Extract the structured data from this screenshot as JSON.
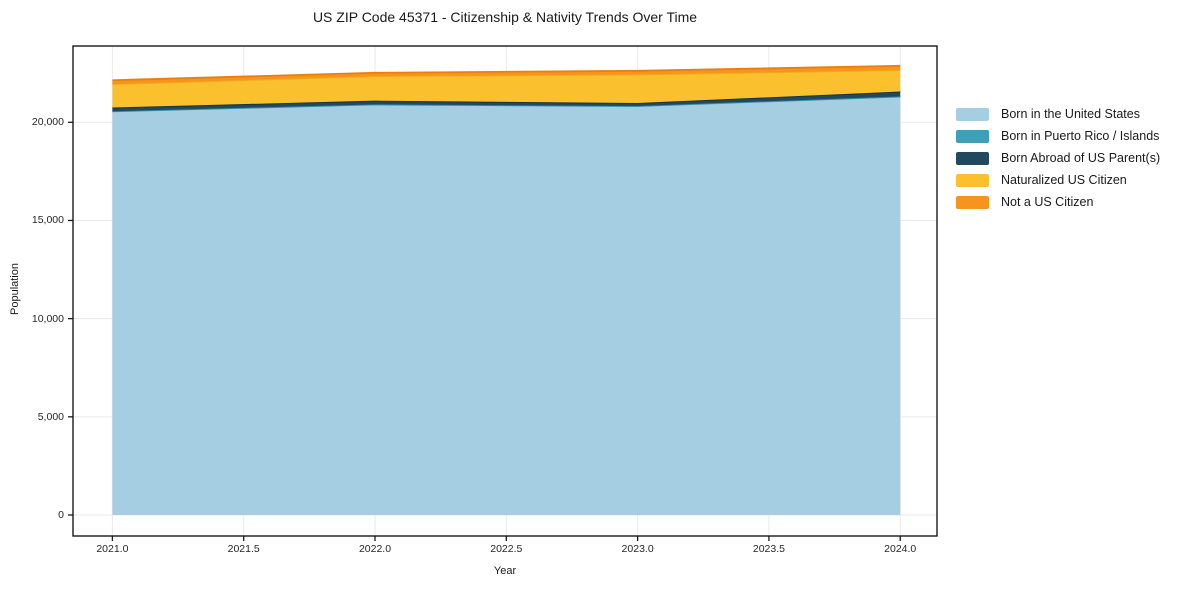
{
  "page": {
    "background": "#ffffff"
  },
  "chart_data": {
    "type": "area",
    "stacked": true,
    "title": "US ZIP Code 45371 - Citizenship & Nativity Trends Over Time",
    "xlabel": "Year",
    "ylabel": "Population",
    "x": [
      2021,
      2022,
      2023,
      2024
    ],
    "series": [
      {
        "name": "Born in the United States",
        "color": "#A6CEE3",
        "edge_color": "#8FC0DA",
        "values": [
          20550,
          20900,
          20820,
          21300
        ]
      },
      {
        "name": "Born in Puerto Rico / Islands",
        "color": "#3D9FB8",
        "edge_color": "#2E8CA6",
        "values": [
          12,
          12,
          12,
          18
        ]
      },
      {
        "name": "Born Abroad of US Parent(s)",
        "color": "#21485C",
        "edge_color": "#16323F",
        "values": [
          190,
          190,
          150,
          250
        ]
      },
      {
        "name": "Naturalized US Citizen",
        "color": "#FBC02D",
        "edge_color": "#F0AD1E",
        "values": [
          1190,
          1250,
          1450,
          1090
        ]
      },
      {
        "name": "Not a US Citizen",
        "color": "#F7941E",
        "edge_color": "#EC7F0C",
        "values": [
          200,
          170,
          190,
          220
        ]
      }
    ],
    "xticks": {
      "values": [
        2021,
        2021.5,
        2022,
        2022.5,
        2023,
        2023.5,
        2024
      ],
      "labels": [
        "2021.0",
        "2021.5",
        "2022.0",
        "2022.5",
        "2023.0",
        "2023.5",
        "2024.0"
      ]
    },
    "yticks": {
      "values": [
        0,
        5000,
        10000,
        15000,
        20000
      ],
      "labels": [
        "0",
        "5,000",
        "10,000",
        "15,000",
        "20,000"
      ]
    },
    "xlim": [
      2020.85,
      2024.14
    ],
    "ylim": [
      -1070,
      23886
    ],
    "grid": true,
    "grid_color": "#e9e9e9",
    "spine_color": "#1a1a1a",
    "legend_position": "right"
  }
}
